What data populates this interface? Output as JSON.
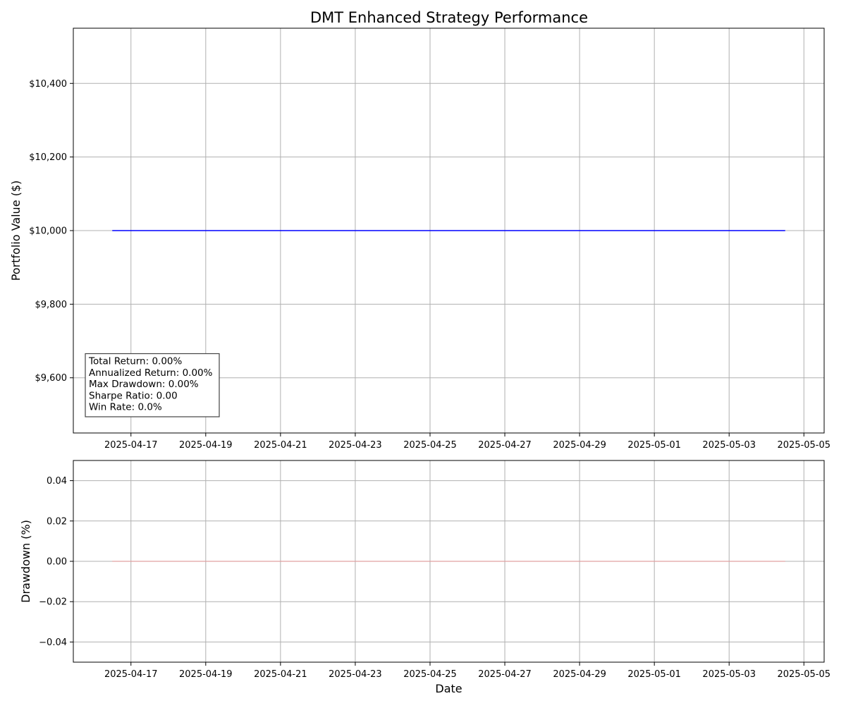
{
  "chart_data": [
    {
      "type": "line",
      "title": "DMT Enhanced Strategy Performance",
      "xlabel": "",
      "ylabel": "Portfolio Value ($)",
      "x_start": "2025-04-16T12:00",
      "x_end": "2025-05-04T12:00",
      "xlim": [
        "2025-04-15T11:00",
        "2025-05-05T13:00"
      ],
      "xticks": [
        "2025-04-17",
        "2025-04-19",
        "2025-04-21",
        "2025-04-23",
        "2025-04-25",
        "2025-04-27",
        "2025-04-29",
        "2025-05-01",
        "2025-05-03",
        "2025-05-05"
      ],
      "ylim": [
        9450,
        10550
      ],
      "yticks": [
        9600,
        9800,
        10000,
        10200,
        10400
      ],
      "ytick_labels": [
        "$9,600",
        "$9,800",
        "$10,000",
        "$10,200",
        "$10,400"
      ],
      "grid": true,
      "series": [
        {
          "values": [
            10000,
            10000
          ],
          "color": "#0000ff"
        }
      ],
      "annotation": {
        "placement": "bottom-left",
        "lines": [
          "Total Return: 0.00%",
          "Annualized Return: 0.00%",
          "Max Drawdown: 0.00%",
          "Sharpe Ratio: 0.00",
          "Win Rate: 0.0%"
        ]
      }
    },
    {
      "type": "area",
      "title": "",
      "xlabel": "Date",
      "ylabel": "Drawdown (%)",
      "x_start": "2025-04-16T12:00",
      "x_end": "2025-05-04T12:00",
      "xlim": [
        "2025-04-15T11:00",
        "2025-05-05T13:00"
      ],
      "xticks": [
        "2025-04-17",
        "2025-04-19",
        "2025-04-21",
        "2025-04-23",
        "2025-04-25",
        "2025-04-27",
        "2025-04-29",
        "2025-05-01",
        "2025-05-03",
        "2025-05-05"
      ],
      "ylim": [
        -0.05,
        0.05
      ],
      "yticks": [
        -0.04,
        -0.02,
        0.0,
        0.02,
        0.04
      ],
      "ytick_labels": [
        "−0.04",
        "−0.02",
        "0.00",
        "0.02",
        "0.04"
      ],
      "grid": true,
      "series": [
        {
          "values": [
            0,
            0
          ],
          "color": "#e0a0a0"
        }
      ]
    }
  ]
}
